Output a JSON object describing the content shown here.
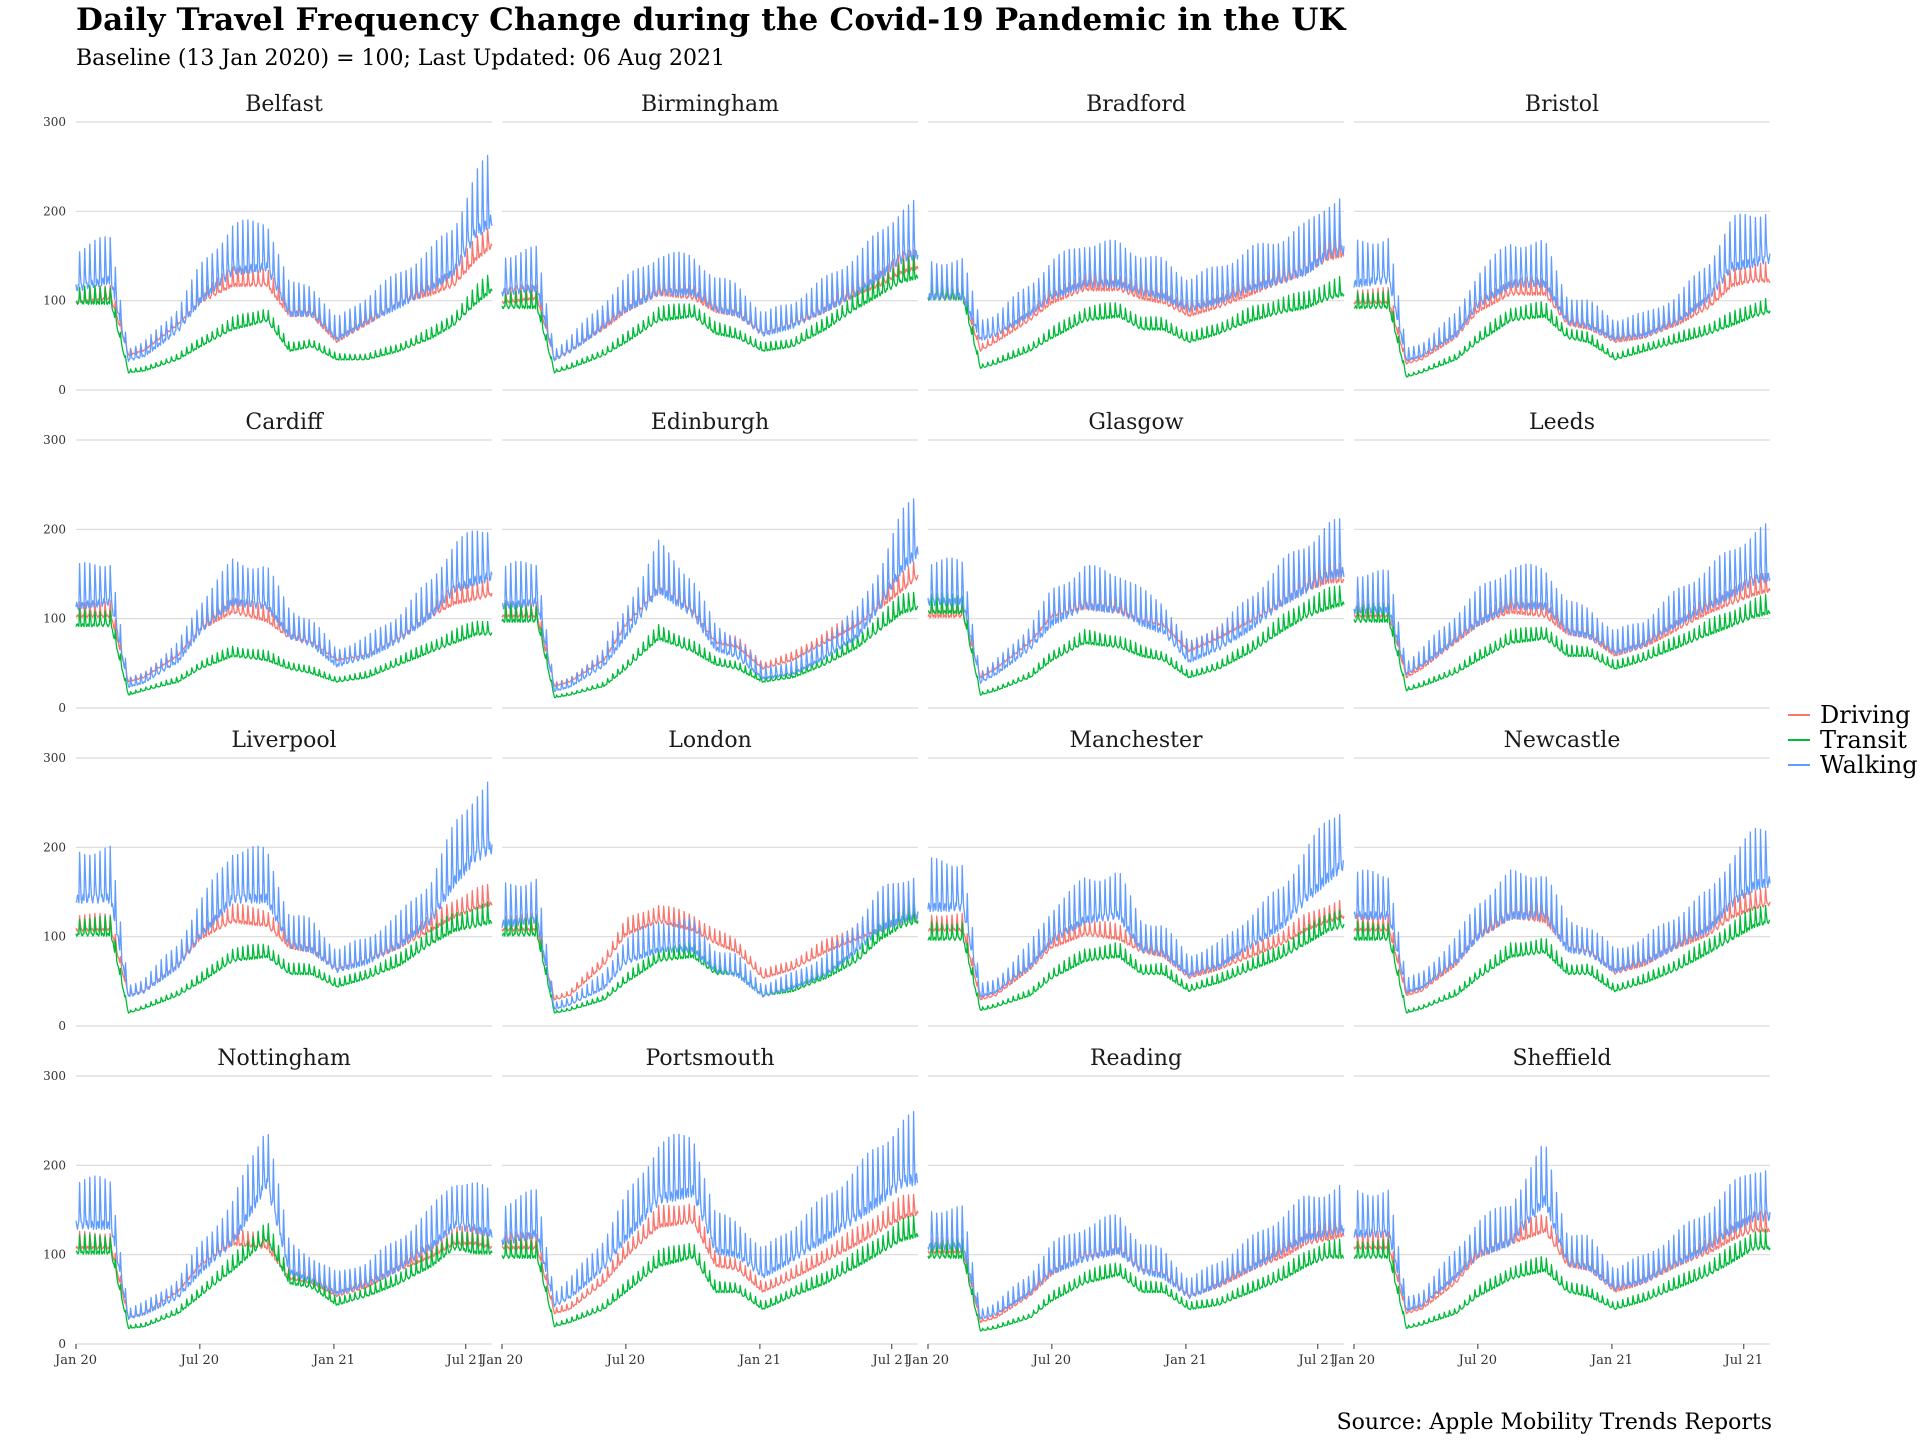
{
  "title": "Daily Travel Frequency Change during the Covid-19 Pandemic in the UK",
  "subtitle": "Baseline (13 Jan 2020) = 100; Last Updated: 06 Aug 2021",
  "caption": "Source: Apple Mobility Trends Reports",
  "colors": {
    "Driving": "#F8766D",
    "Transit": "#00BA38",
    "Walking": "#619CFF",
    "grid": "#d9d9d9"
  },
  "chart_data": {
    "type": "line",
    "facet": "small-multiples",
    "x_range": [
      "2020-01-13",
      "2021-08-06"
    ],
    "x_ticks": [
      {
        "date": "2020-01-13",
        "label": "Jan 20"
      },
      {
        "date": "2020-07-01",
        "label": "Jul 20"
      },
      {
        "date": "2021-01-01",
        "label": "Jan 21"
      },
      {
        "date": "2021-07-01",
        "label": "Jul 21"
      }
    ],
    "ylim": [
      0,
      300
    ],
    "y_ticks": [
      0,
      100,
      200,
      300
    ],
    "legend": {
      "placement": "right",
      "entries": [
        "Driving",
        "Transit",
        "Walking"
      ]
    },
    "sample_dates": [
      "2020-01-13",
      "2020-03-01",
      "2020-03-25",
      "2020-04-15",
      "2020-06-01",
      "2020-07-01",
      "2020-08-15",
      "2020-10-01",
      "2020-11-01",
      "2020-12-01",
      "2021-01-05",
      "2021-02-15",
      "2021-04-01",
      "2021-05-15",
      "2021-06-15",
      "2021-07-15",
      "2021-08-06"
    ],
    "panels": [
      {
        "city": "Belfast",
        "Driving": [
          100,
          105,
          40,
          45,
          75,
          100,
          120,
          120,
          85,
          85,
          55,
          75,
          100,
          110,
          120,
          150,
          165
        ],
        "Transit": [
          100,
          100,
          20,
          22,
          35,
          50,
          70,
          80,
          45,
          50,
          35,
          35,
          45,
          60,
          75,
          100,
          115
        ],
        "Walking": [
          120,
          130,
          35,
          40,
          70,
          105,
          140,
          145,
          90,
          90,
          60,
          80,
          100,
          120,
          140,
          185,
          200
        ]
      },
      {
        "city": "Birmingham",
        "Driving": [
          100,
          105,
          35,
          45,
          70,
          90,
          110,
          105,
          90,
          85,
          65,
          75,
          90,
          110,
          120,
          135,
          140
        ],
        "Transit": [
          95,
          95,
          20,
          25,
          40,
          55,
          80,
          85,
          65,
          60,
          45,
          50,
          70,
          95,
          110,
          125,
          130
        ],
        "Walking": [
          115,
          120,
          35,
          45,
          75,
          95,
          115,
          115,
          95,
          90,
          65,
          75,
          95,
          115,
          135,
          155,
          160
        ]
      },
      {
        "city": "Bradford",
        "Driving": [
          105,
          105,
          45,
          55,
          80,
          100,
          115,
          115,
          105,
          100,
          85,
          95,
          110,
          125,
          135,
          150,
          155
        ],
        "Transit": [
          105,
          105,
          25,
          30,
          45,
          60,
          80,
          85,
          70,
          70,
          55,
          65,
          80,
          90,
          95,
          105,
          110
        ],
        "Walking": [
          110,
          110,
          60,
          65,
          90,
          110,
          125,
          125,
          115,
          110,
          95,
          105,
          120,
          130,
          140,
          160,
          165
        ]
      },
      {
        "city": "Bristol",
        "Driving": [
          100,
          100,
          30,
          35,
          60,
          90,
          110,
          110,
          75,
          70,
          55,
          60,
          75,
          95,
          120,
          125,
          125
        ],
        "Transit": [
          95,
          95,
          15,
          20,
          35,
          55,
          80,
          85,
          60,
          55,
          35,
          45,
          55,
          65,
          75,
          85,
          90
        ],
        "Walking": [
          125,
          130,
          35,
          40,
          65,
          100,
          125,
          125,
          80,
          75,
          60,
          65,
          80,
          110,
          145,
          150,
          155
        ]
      },
      {
        "city": "Cardiff",
        "Driving": [
          105,
          105,
          30,
          35,
          60,
          90,
          110,
          100,
          80,
          75,
          55,
          60,
          80,
          105,
          120,
          125,
          130
        ],
        "Transit": [
          95,
          95,
          15,
          20,
          30,
          45,
          60,
          55,
          45,
          40,
          30,
          35,
          50,
          65,
          75,
          85,
          85
        ],
        "Walking": [
          120,
          125,
          25,
          30,
          55,
          90,
          125,
          120,
          85,
          75,
          50,
          60,
          80,
          110,
          140,
          150,
          155
        ]
      },
      {
        "city": "Edinburgh",
        "Driving": [
          105,
          105,
          25,
          30,
          55,
          95,
          135,
          110,
          75,
          70,
          45,
          55,
          75,
          95,
          115,
          135,
          150
        ],
        "Transit": [
          100,
          100,
          12,
          15,
          25,
          45,
          80,
          65,
          50,
          45,
          30,
          35,
          50,
          70,
          90,
          110,
          115
        ],
        "Walking": [
          120,
          125,
          20,
          25,
          50,
          85,
          140,
          110,
          70,
          60,
          35,
          40,
          60,
          85,
          120,
          165,
          185
        ]
      },
      {
        "city": "Glasgow",
        "Driving": [
          105,
          105,
          35,
          45,
          75,
          105,
          115,
          110,
          100,
          95,
          65,
          80,
          100,
          120,
          135,
          145,
          145
        ],
        "Transit": [
          110,
          110,
          15,
          20,
          35,
          55,
          75,
          70,
          60,
          55,
          35,
          45,
          65,
          90,
          105,
          115,
          120
        ],
        "Walking": [
          125,
          125,
          30,
          40,
          70,
          100,
          120,
          115,
          100,
          90,
          55,
          70,
          95,
          125,
          140,
          155,
          160
        ]
      },
      {
        "city": "Leeds",
        "Driving": [
          105,
          105,
          35,
          45,
          75,
          95,
          110,
          105,
          85,
          80,
          60,
          70,
          90,
          110,
          120,
          130,
          135
        ],
        "Transit": [
          100,
          100,
          20,
          25,
          40,
          55,
          75,
          80,
          60,
          60,
          45,
          55,
          70,
          85,
          95,
          105,
          110
        ],
        "Walking": [
          115,
          115,
          40,
          50,
          80,
          100,
          120,
          120,
          90,
          85,
          65,
          75,
          100,
          120,
          135,
          150,
          155
        ]
      },
      {
        "city": "Liverpool",
        "Driving": [
          110,
          110,
          35,
          40,
          70,
          100,
          120,
          115,
          90,
          85,
          65,
          75,
          90,
          110,
          125,
          135,
          140
        ],
        "Transit": [
          105,
          105,
          15,
          20,
          35,
          50,
          75,
          80,
          60,
          60,
          45,
          55,
          70,
          95,
          110,
          115,
          120
        ],
        "Walking": [
          150,
          150,
          35,
          40,
          70,
          105,
          150,
          150,
          95,
          90,
          65,
          75,
          95,
          125,
          170,
          200,
          210
        ]
      },
      {
        "city": "London",
        "Driving": [
          110,
          110,
          30,
          35,
          70,
          105,
          120,
          110,
          95,
          85,
          55,
          65,
          85,
          100,
          110,
          120,
          125
        ],
        "Transit": [
          105,
          105,
          15,
          18,
          30,
          50,
          75,
          80,
          60,
          60,
          35,
          40,
          55,
          75,
          100,
          115,
          120
        ],
        "Walking": [
          120,
          125,
          20,
          25,
          45,
          75,
          90,
          90,
          65,
          60,
          35,
          45,
          60,
          90,
          115,
          125,
          130
        ]
      },
      {
        "city": "Manchester",
        "Driving": [
          110,
          110,
          30,
          35,
          65,
          90,
          105,
          100,
          85,
          80,
          55,
          65,
          80,
          95,
          110,
          120,
          125
        ],
        "Transit": [
          100,
          100,
          18,
          22,
          35,
          55,
          75,
          80,
          60,
          60,
          40,
          50,
          65,
          80,
          95,
          110,
          115
        ],
        "Walking": [
          140,
          140,
          35,
          40,
          70,
          100,
          125,
          130,
          90,
          85,
          60,
          70,
          95,
          120,
          150,
          175,
          190
        ]
      },
      {
        "city": "Newcastle",
        "Driving": [
          110,
          110,
          35,
          40,
          70,
          100,
          125,
          120,
          90,
          85,
          60,
          70,
          90,
          105,
          125,
          135,
          140
        ],
        "Transit": [
          100,
          100,
          15,
          20,
          35,
          55,
          80,
          85,
          60,
          60,
          40,
          50,
          65,
          85,
          100,
          115,
          120
        ],
        "Walking": [
          130,
          130,
          40,
          45,
          75,
          105,
          130,
          130,
          90,
          85,
          65,
          75,
          95,
          115,
          145,
          165,
          170
        ]
      },
      {
        "city": "Nottingham",
        "Driving": [
          110,
          110,
          30,
          35,
          60,
          90,
          115,
          110,
          75,
          70,
          55,
          65,
          85,
          100,
          115,
          115,
          110
        ],
        "Transit": [
          105,
          105,
          18,
          20,
          35,
          55,
          85,
          120,
          70,
          65,
          45,
          55,
          70,
          90,
          110,
          105,
          105
        ],
        "Walking": [
          140,
          140,
          30,
          35,
          55,
          85,
          120,
          190,
          85,
          75,
          60,
          70,
          90,
          115,
          140,
          135,
          130
        ]
      },
      {
        "city": "Portsmouth",
        "Driving": [
          110,
          110,
          35,
          40,
          70,
          100,
          135,
          140,
          90,
          85,
          60,
          75,
          95,
          115,
          130,
          145,
          150
        ],
        "Transit": [
          100,
          100,
          20,
          25,
          40,
          60,
          90,
          100,
          60,
          60,
          40,
          55,
          70,
          90,
          105,
          120,
          125
        ],
        "Walking": [
          120,
          130,
          45,
          55,
          90,
          125,
          170,
          180,
          110,
          105,
          80,
          100,
          125,
          150,
          170,
          190,
          195
        ]
      },
      {
        "city": "Reading",
        "Driving": [
          105,
          105,
          25,
          30,
          55,
          80,
          100,
          105,
          85,
          80,
          55,
          65,
          85,
          100,
          115,
          120,
          125
        ],
        "Transit": [
          100,
          100,
          15,
          18,
          30,
          50,
          70,
          80,
          60,
          60,
          40,
          45,
          60,
          75,
          90,
          100,
          100
        ],
        "Walking": [
          115,
          115,
          30,
          35,
          60,
          85,
          100,
          110,
          85,
          80,
          55,
          70,
          90,
          110,
          125,
          130,
          135
        ]
      },
      {
        "city": "Sheffield",
        "Driving": [
          110,
          110,
          35,
          40,
          70,
          100,
          115,
          130,
          90,
          85,
          60,
          70,
          90,
          105,
          120,
          130,
          130
        ],
        "Transit": [
          100,
          100,
          18,
          22,
          35,
          55,
          75,
          85,
          60,
          55,
          40,
          50,
          65,
          80,
          95,
          110,
          110
        ],
        "Walking": [
          130,
          130,
          40,
          45,
          80,
          105,
          120,
          170,
          95,
          90,
          65,
          75,
          95,
          115,
          135,
          150,
          150
        ]
      }
    ]
  }
}
